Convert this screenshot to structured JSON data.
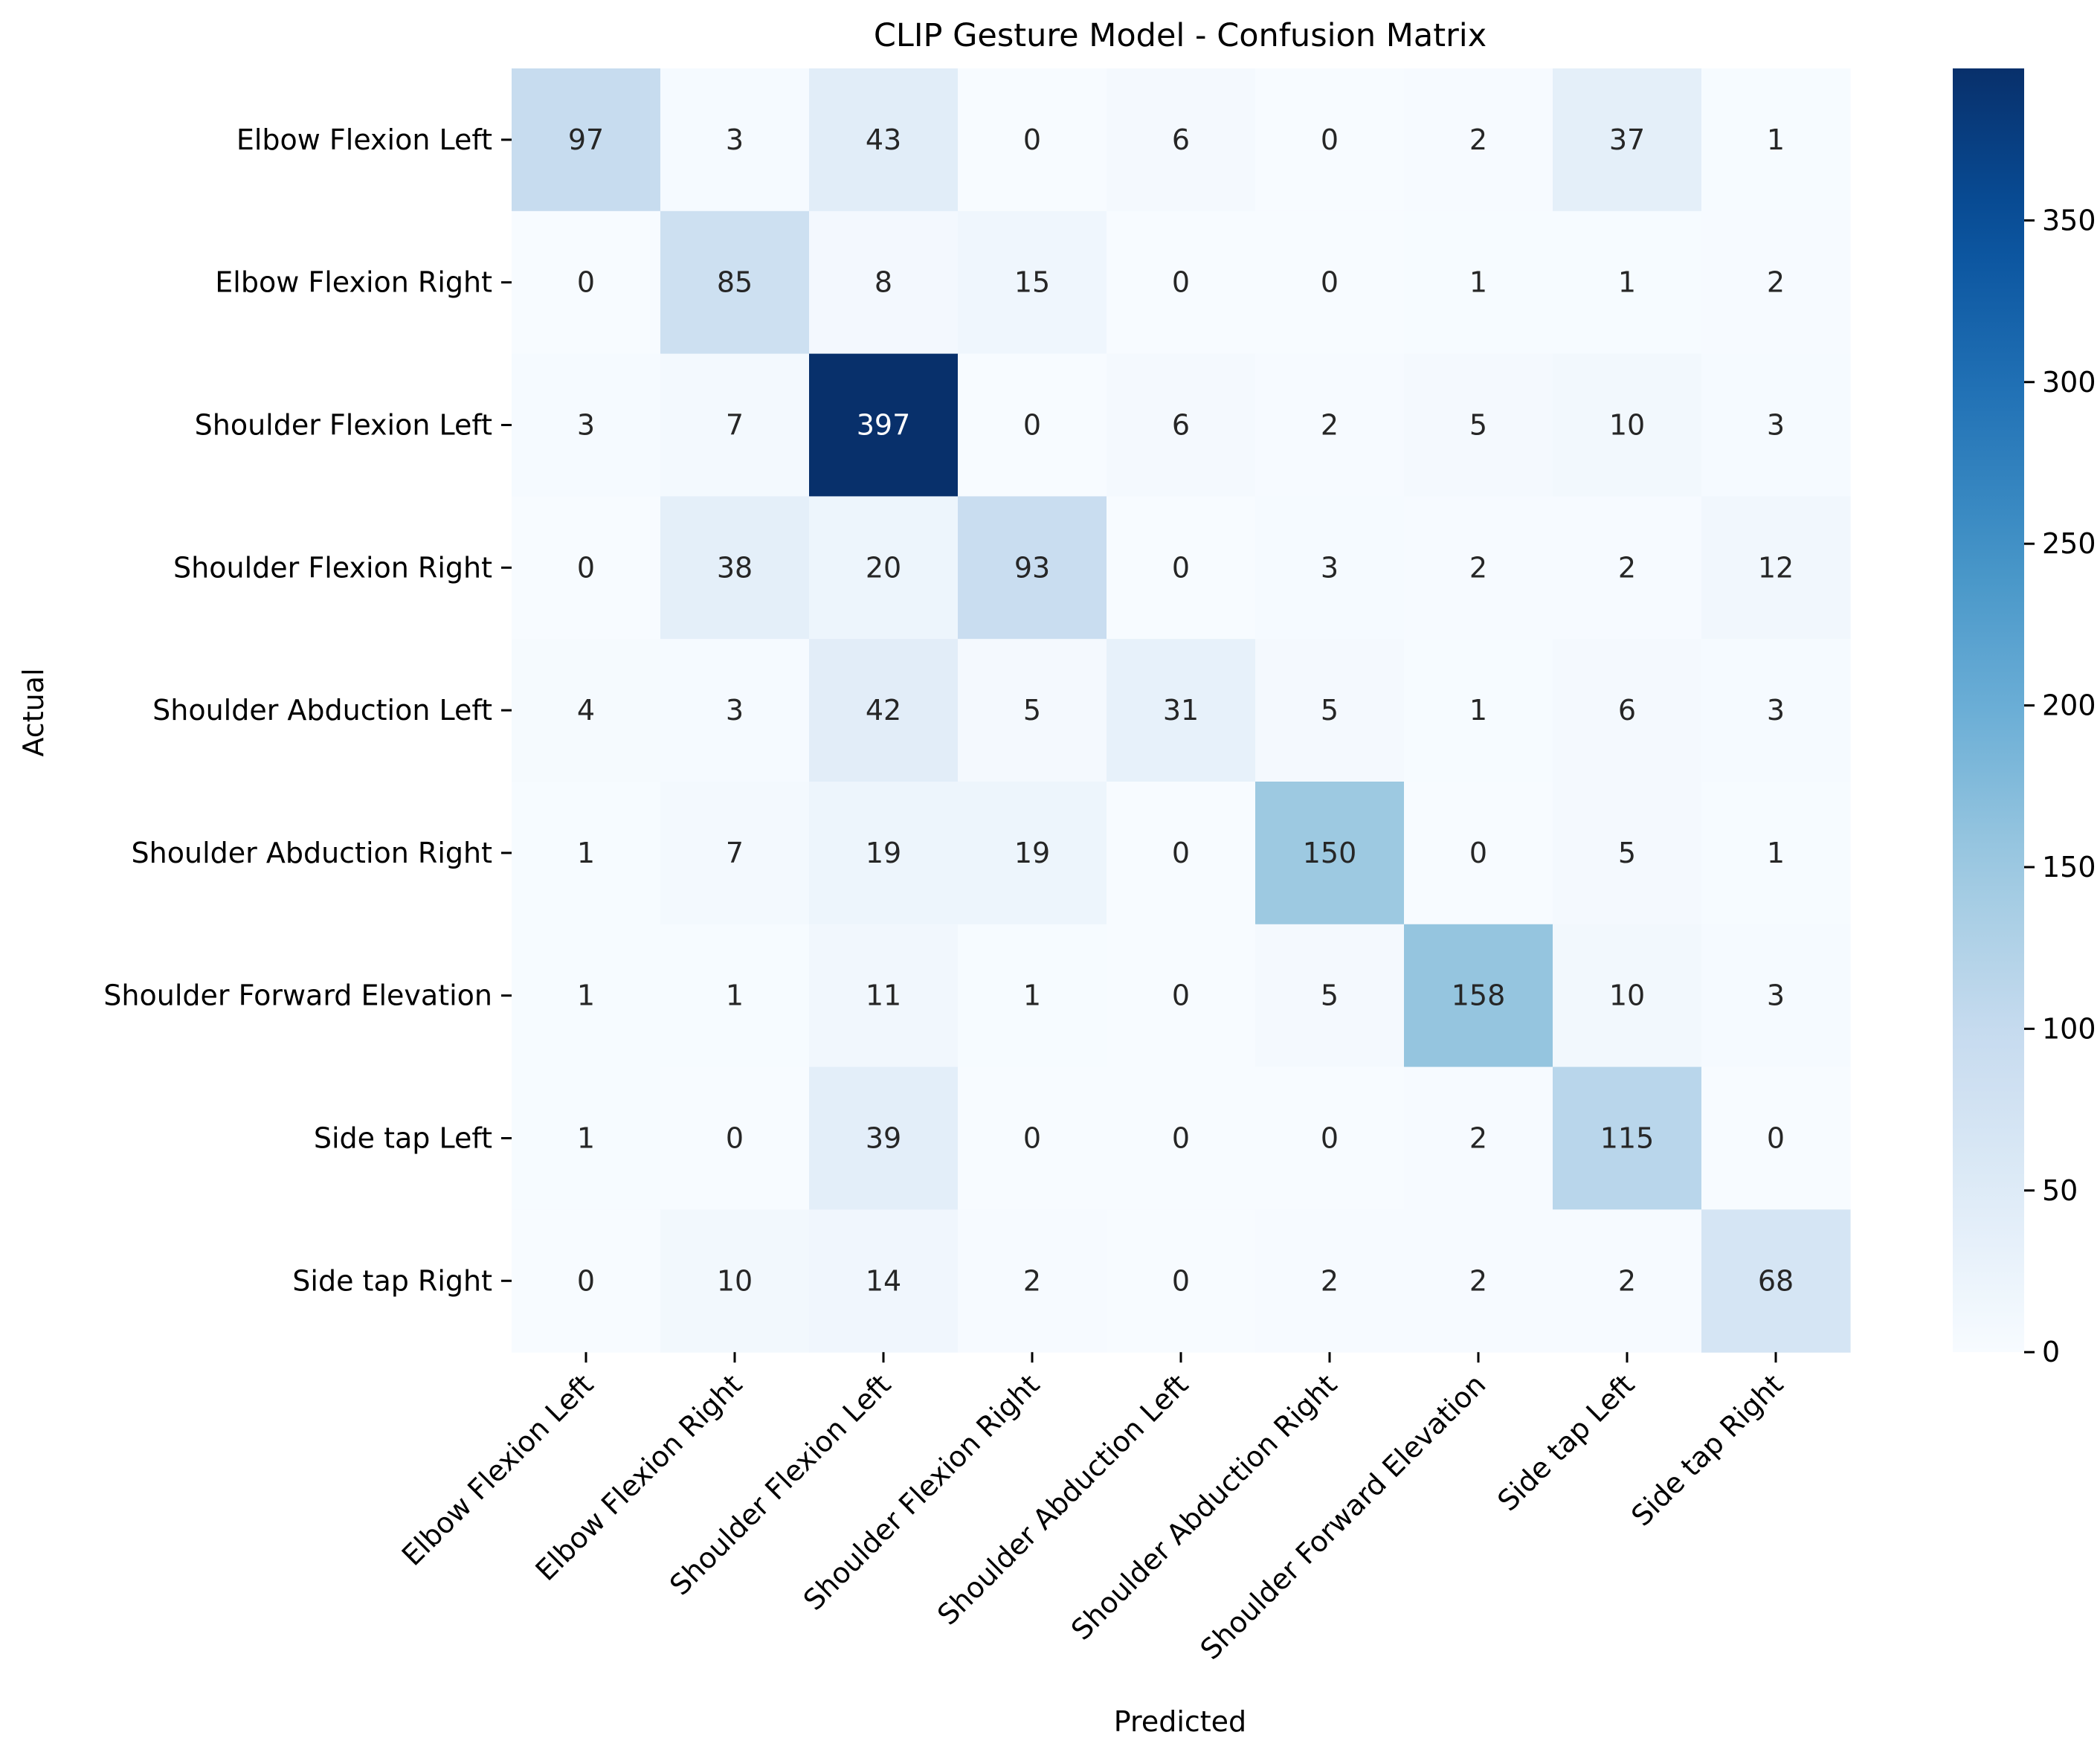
{
  "chart_data": {
    "type": "heatmap",
    "title": "CLIP Gesture Model - Confusion Matrix",
    "xlabel": "Predicted",
    "ylabel": "Actual",
    "x_categories": [
      "Elbow Flexion Left",
      "Elbow Flexion Right",
      "Shoulder Flexion Left",
      "Shoulder Flexion Right",
      "Shoulder Abduction Left",
      "Shoulder Abduction Right",
      "Shoulder Forward Elevation",
      "Side tap Left",
      "Side tap Right"
    ],
    "y_categories": [
      "Elbow Flexion Left",
      "Elbow Flexion Right",
      "Shoulder Flexion Left",
      "Shoulder Flexion Right",
      "Shoulder Abduction Left",
      "Shoulder Abduction Right",
      "Shoulder Forward Elevation",
      "Side tap Left",
      "Side tap Right"
    ],
    "values": [
      [
        97,
        3,
        43,
        0,
        6,
        0,
        2,
        37,
        1
      ],
      [
        0,
        85,
        8,
        15,
        0,
        0,
        1,
        1,
        2
      ],
      [
        3,
        7,
        397,
        0,
        6,
        2,
        5,
        10,
        3
      ],
      [
        0,
        38,
        20,
        93,
        0,
        3,
        2,
        2,
        12
      ],
      [
        4,
        3,
        42,
        5,
        31,
        5,
        1,
        6,
        3
      ],
      [
        1,
        7,
        19,
        19,
        0,
        150,
        0,
        5,
        1
      ],
      [
        1,
        1,
        11,
        1,
        0,
        5,
        158,
        10,
        3
      ],
      [
        1,
        0,
        39,
        0,
        0,
        0,
        2,
        115,
        0
      ],
      [
        0,
        10,
        14,
        2,
        0,
        2,
        2,
        2,
        68
      ]
    ],
    "colormap": "Blues",
    "vmin": 0,
    "vmax": 397,
    "colorbar_ticks": [
      0,
      50,
      100,
      150,
      200,
      250,
      300,
      350
    ]
  }
}
